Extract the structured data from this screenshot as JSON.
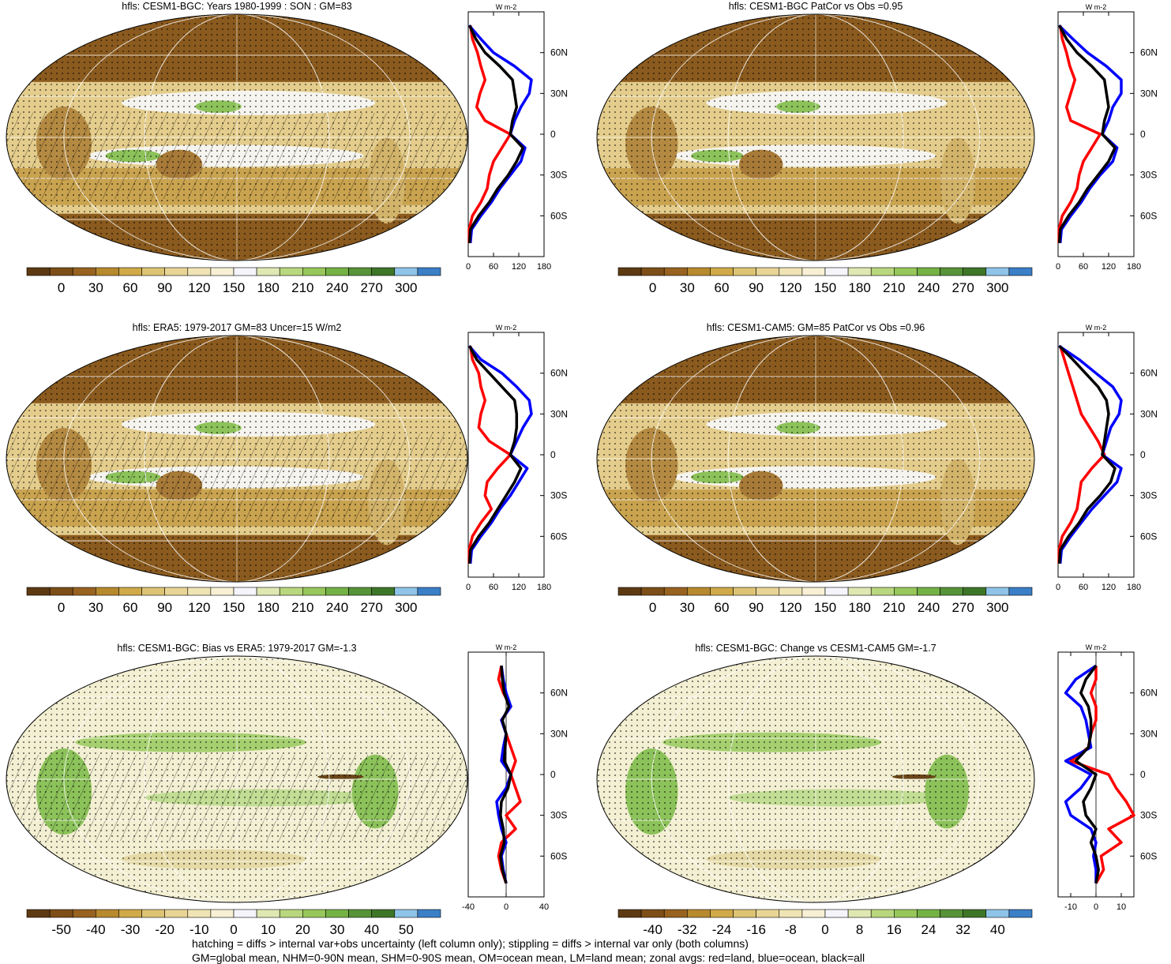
{
  "chart_data": [
    {
      "type": "heatmap",
      "map_title": "hfls: CESM1-BGC: Years 1980-1999 : SON : GM=83",
      "profile_unit": "W m-2",
      "profile_xticks": [
        "0",
        "60",
        "120",
        "180"
      ],
      "profile_xlim": [
        0,
        180
      ],
      "lat_ticks": [
        "60N",
        "30N",
        "0",
        "30S",
        "60S"
      ],
      "colorbar_ticks": [
        "0",
        "30",
        "60",
        "90",
        "120",
        "150",
        "180",
        "210",
        "240",
        "270",
        "300"
      ],
      "series": [
        {
          "name": "land",
          "color": "#ff0000",
          "lat": [
            80,
            70,
            60,
            50,
            40,
            30,
            20,
            10,
            0,
            -10,
            -20,
            -30,
            -40,
            -50,
            -60,
            -70,
            -80
          ],
          "values": [
            5,
            10,
            22,
            30,
            40,
            28,
            20,
            40,
            100,
            80,
            60,
            50,
            45,
            30,
            10,
            2,
            2
          ]
        },
        {
          "name": "ocean",
          "color": "#0000ff",
          "lat": [
            80,
            70,
            60,
            50,
            40,
            30,
            20,
            10,
            0,
            -10,
            -20,
            -30,
            -40,
            -50,
            -60,
            -70,
            -80
          ],
          "values": [
            2,
            30,
            60,
            110,
            150,
            145,
            125,
            110,
            100,
            135,
            125,
            100,
            75,
            55,
            30,
            8,
            5
          ]
        },
        {
          "name": "all",
          "color": "#000000",
          "lat": [
            80,
            70,
            60,
            50,
            40,
            30,
            20,
            10,
            0,
            -10,
            -20,
            -30,
            -40,
            -50,
            -60,
            -70,
            -80
          ],
          "values": [
            3,
            18,
            40,
            75,
            105,
            110,
            115,
            105,
            100,
            130,
            115,
            95,
            70,
            50,
            25,
            5,
            3
          ]
        }
      ]
    },
    {
      "type": "heatmap",
      "map_title": "hfls: CESM1-BGC PatCor vs Obs =0.95",
      "profile_unit": "W m-2",
      "profile_xticks": [
        "0",
        "60",
        "120",
        "180"
      ],
      "profile_xlim": [
        0,
        180
      ],
      "lat_ticks": [
        "60N",
        "30N",
        "0",
        "30S",
        "60S"
      ],
      "colorbar_ticks": [
        "0",
        "30",
        "60",
        "90",
        "120",
        "150",
        "180",
        "210",
        "240",
        "270",
        "300"
      ],
      "series": [
        {
          "name": "land",
          "color": "#ff0000",
          "lat": [
            80,
            70,
            60,
            50,
            40,
            30,
            20,
            10,
            0,
            -10,
            -20,
            -30,
            -40,
            -50,
            -60,
            -70,
            -80
          ],
          "values": [
            5,
            10,
            20,
            28,
            40,
            30,
            20,
            30,
            100,
            80,
            60,
            50,
            45,
            30,
            10,
            2,
            2
          ]
        },
        {
          "name": "ocean",
          "color": "#0000ff",
          "lat": [
            80,
            70,
            60,
            50,
            40,
            30,
            20,
            10,
            0,
            -10,
            -20,
            -30,
            -40,
            -50,
            -60,
            -70,
            -80
          ],
          "values": [
            2,
            35,
            70,
            115,
            150,
            150,
            130,
            120,
            105,
            140,
            130,
            100,
            75,
            55,
            30,
            8,
            5
          ]
        },
        {
          "name": "all",
          "color": "#000000",
          "lat": [
            80,
            70,
            60,
            50,
            40,
            30,
            20,
            10,
            0,
            -10,
            -20,
            -30,
            -40,
            -50,
            -60,
            -70,
            -80
          ],
          "values": [
            3,
            20,
            45,
            80,
            110,
            115,
            120,
            110,
            105,
            135,
            120,
            95,
            70,
            50,
            25,
            5,
            3
          ]
        }
      ]
    },
    {
      "type": "heatmap",
      "map_title": "hfls: ERA5: 1979-2017 GM=83 Uncer=15 W/m2",
      "profile_unit": "W m-2",
      "profile_xticks": [
        "0",
        "60",
        "120",
        "180"
      ],
      "profile_xlim": [
        0,
        180
      ],
      "lat_ticks": [
        "60N",
        "30N",
        "0",
        "30S",
        "60S"
      ],
      "colorbar_ticks": [
        "0",
        "30",
        "60",
        "90",
        "120",
        "150",
        "180",
        "210",
        "240",
        "270",
        "300"
      ],
      "series": [
        {
          "name": "land",
          "color": "#ff0000",
          "lat": [
            80,
            70,
            60,
            50,
            40,
            30,
            20,
            10,
            0,
            -10,
            -20,
            -30,
            -40,
            -50,
            -60,
            -70,
            -80
          ],
          "values": [
            5,
            10,
            25,
            30,
            40,
            30,
            25,
            50,
            100,
            70,
            45,
            40,
            55,
            30,
            10,
            2,
            2
          ]
        },
        {
          "name": "ocean",
          "color": "#0000ff",
          "lat": [
            80,
            70,
            60,
            50,
            40,
            30,
            20,
            10,
            0,
            -10,
            -20,
            -30,
            -40,
            -50,
            -60,
            -70,
            -80
          ],
          "values": [
            2,
            30,
            80,
            115,
            145,
            150,
            130,
            115,
            100,
            140,
            120,
            100,
            75,
            55,
            30,
            8,
            5
          ]
        },
        {
          "name": "all",
          "color": "#000000",
          "lat": [
            80,
            70,
            60,
            50,
            40,
            30,
            20,
            10,
            0,
            -10,
            -20,
            -30,
            -40,
            -50,
            -60,
            -70,
            -80
          ],
          "values": [
            3,
            20,
            50,
            80,
            110,
            115,
            115,
            110,
            100,
            125,
            110,
            90,
            70,
            50,
            25,
            5,
            3
          ]
        }
      ]
    },
    {
      "type": "heatmap",
      "map_title": "hfls: CESM1-CAM5: GM=85 PatCor vs Obs =0.96",
      "profile_unit": "W m-2",
      "profile_xticks": [
        "0",
        "60",
        "120",
        "180"
      ],
      "profile_xlim": [
        0,
        180
      ],
      "lat_ticks": [
        "60N",
        "30N",
        "0",
        "30S",
        "60S"
      ],
      "colorbar_ticks": [
        "0",
        "30",
        "60",
        "90",
        "120",
        "150",
        "180",
        "210",
        "240",
        "270",
        "300"
      ],
      "series": [
        {
          "name": "land",
          "color": "#ff0000",
          "lat": [
            80,
            70,
            60,
            50,
            40,
            30,
            20,
            10,
            0,
            -10,
            -20,
            -30,
            -40,
            -50,
            -60,
            -70,
            -80
          ],
          "values": [
            5,
            15,
            25,
            35,
            45,
            55,
            75,
            95,
            110,
            80,
            55,
            50,
            45,
            30,
            10,
            2,
            2
          ]
        },
        {
          "name": "ocean",
          "color": "#0000ff",
          "lat": [
            80,
            70,
            60,
            50,
            40,
            30,
            20,
            10,
            0,
            -10,
            -20,
            -30,
            -40,
            -50,
            -60,
            -70,
            -80
          ],
          "values": [
            2,
            50,
            90,
            130,
            150,
            145,
            125,
            115,
            105,
            150,
            140,
            110,
            80,
            55,
            30,
            8,
            5
          ]
        },
        {
          "name": "all",
          "color": "#000000",
          "lat": [
            80,
            70,
            60,
            50,
            40,
            30,
            20,
            10,
            0,
            -10,
            -20,
            -30,
            -40,
            -50,
            -60,
            -70,
            -80
          ],
          "values": [
            3,
            35,
            65,
            95,
            115,
            120,
            115,
            110,
            105,
            135,
            125,
            100,
            70,
            50,
            25,
            5,
            3
          ]
        }
      ]
    },
    {
      "type": "heatmap",
      "map_title": "hfls: CESM1-BGC: Bias vs ERA5: 1979-2017  GM=-1.3",
      "profile_unit": "W m-2",
      "profile_xticks": [
        "-40",
        "0",
        "40"
      ],
      "profile_xlim": [
        -40,
        40
      ],
      "lat_ticks": [
        "60N",
        "30N",
        "0",
        "30S",
        "60S"
      ],
      "colorbar_ticks": [
        "-50",
        "-40",
        "-30",
        "-20",
        "-10",
        "0",
        "10",
        "20",
        "30",
        "40",
        "50"
      ],
      "series": [
        {
          "name": "land",
          "color": "#ff0000",
          "lat": [
            80,
            70,
            60,
            50,
            40,
            30,
            20,
            10,
            0,
            -10,
            -20,
            -30,
            -40,
            -50,
            -60,
            -70,
            -80
          ],
          "values": [
            -5,
            -8,
            -3,
            5,
            -5,
            0,
            5,
            10,
            5,
            10,
            15,
            0,
            10,
            -5,
            -8,
            -5,
            0
          ]
        },
        {
          "name": "ocean",
          "color": "#0000ff",
          "lat": [
            80,
            70,
            60,
            50,
            40,
            30,
            20,
            10,
            0,
            -10,
            -20,
            -30,
            -40,
            -50,
            -60,
            -70,
            -80
          ],
          "values": [
            -5,
            -3,
            0,
            5,
            -5,
            0,
            -3,
            -5,
            5,
            0,
            -10,
            -8,
            -5,
            0,
            -5,
            -3,
            0
          ]
        },
        {
          "name": "all",
          "color": "#000000",
          "lat": [
            80,
            70,
            60,
            50,
            40,
            30,
            20,
            10,
            0,
            -10,
            -20,
            -30,
            -40,
            -50,
            -60,
            -70,
            -80
          ],
          "values": [
            -5,
            -4,
            -2,
            3,
            -4,
            0,
            -1,
            -2,
            5,
            2,
            -5,
            -6,
            -3,
            -2,
            -6,
            -4,
            0
          ]
        }
      ]
    },
    {
      "type": "heatmap",
      "map_title": "hfls: CESM1-BGC: Change vs CESM1-CAM5 GM=-1.7",
      "profile_unit": "W m-2",
      "profile_xticks": [
        "-10",
        "0",
        "10"
      ],
      "profile_xlim": [
        -15,
        15
      ],
      "lat_ticks": [
        "60N",
        "30N",
        "0",
        "30S",
        "60S"
      ],
      "colorbar_ticks": [
        "-40",
        "-32",
        "-24",
        "-16",
        "-8",
        "0",
        "8",
        "16",
        "24",
        "32",
        "40"
      ],
      "series": [
        {
          "name": "land",
          "color": "#ff0000",
          "lat": [
            80,
            70,
            60,
            50,
            40,
            30,
            20,
            10,
            0,
            -10,
            -20,
            -30,
            -40,
            -50,
            -60,
            -70,
            -80
          ],
          "values": [
            0,
            0,
            -2,
            0,
            0,
            -2,
            -3,
            -10,
            5,
            8,
            12,
            15,
            5,
            10,
            2,
            3,
            0
          ]
        },
        {
          "name": "ocean",
          "color": "#0000ff",
          "lat": [
            80,
            70,
            60,
            50,
            40,
            30,
            20,
            10,
            0,
            -10,
            -20,
            -30,
            -40,
            -50,
            -60,
            -70,
            -80
          ],
          "values": [
            0,
            -8,
            -12,
            -6,
            -4,
            -3,
            -2,
            -12,
            -2,
            -6,
            -12,
            -10,
            -2,
            0,
            -1,
            0,
            0
          ]
        },
        {
          "name": "all",
          "color": "#000000",
          "lat": [
            80,
            70,
            60,
            50,
            40,
            30,
            20,
            10,
            0,
            -10,
            -20,
            -30,
            -40,
            -50,
            -60,
            -70,
            -80
          ],
          "values": [
            0,
            -4,
            -6,
            -3,
            -2,
            -2,
            -3,
            -8,
            0,
            -2,
            -5,
            -4,
            0,
            -2,
            0,
            1,
            0
          ]
        }
      ]
    }
  ],
  "colorbar_colors": [
    "#5e3a12",
    "#7d4e18",
    "#986220",
    "#b88a2e",
    "#d0aa48",
    "#ddc474",
    "#e8d596",
    "#f0e4b4",
    "#f7f0d4",
    "#f4f4fa",
    "#dfe8b2",
    "#b9d77e",
    "#97c75a",
    "#75b245",
    "#579338",
    "#3e7628",
    "#8fc4e8",
    "#3b7fc7"
  ],
  "footnote": {
    "line1": "hatching = diffs > internal var+obs uncertainty (left column only); stippling = diffs > internal var only (both columns)",
    "line2": "GM=global mean, NHM=0-90N mean, SHM=0-90S mean, OM=ocean mean, LM=land mean; zonal avgs: red=land, blue=ocean, black=all"
  }
}
